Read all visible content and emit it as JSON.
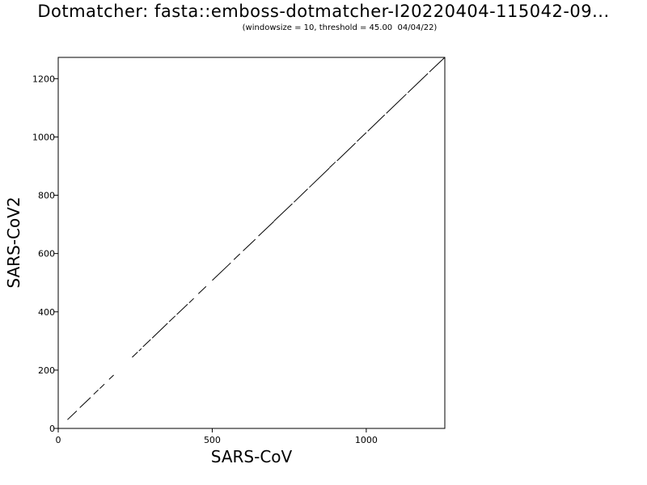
{
  "chart_data": {
    "type": "scatter",
    "title": "Dotmatcher: fasta::emboss-dotmatcher-I20220404-115042-09...",
    "subtitle": "(windowsize = 10, threshold = 45.00  04/04/22)",
    "xlabel": "SARS-CoV",
    "ylabel": "SARS-CoV2",
    "xlim": [
      0,
      1255
    ],
    "ylim": [
      0,
      1273
    ],
    "xticks": [
      0,
      500,
      1000
    ],
    "yticks": [
      0,
      200,
      400,
      600,
      800,
      1000,
      1200
    ],
    "grid": false,
    "series": [
      {
        "segments": [
          [
            30,
            30,
            60,
            60
          ],
          [
            70,
            71,
            105,
            106
          ],
          [
            115,
            117,
            130,
            132
          ],
          [
            135,
            137,
            150,
            152
          ],
          [
            165,
            168,
            180,
            183
          ],
          [
            240,
            244,
            258,
            262
          ],
          [
            262,
            266,
            270,
            274
          ],
          [
            275,
            280,
            300,
            305
          ],
          [
            305,
            310,
            355,
            361
          ],
          [
            360,
            366,
            380,
            386
          ],
          [
            385,
            391,
            420,
            426
          ],
          [
            425,
            431,
            440,
            446
          ],
          [
            455,
            462,
            480,
            487
          ],
          [
            500,
            508,
            560,
            568
          ],
          [
            570,
            579,
            590,
            599
          ],
          [
            600,
            609,
            640,
            649
          ],
          [
            650,
            660,
            700,
            710
          ],
          [
            700,
            711,
            760,
            771
          ],
          [
            765,
            776,
            810,
            822
          ],
          [
            815,
            827,
            880,
            893
          ],
          [
            880,
            894,
            900,
            914
          ],
          [
            905,
            918,
            965,
            979
          ],
          [
            970,
            985,
            1000,
            1015
          ],
          [
            1005,
            1020,
            1060,
            1076
          ],
          [
            1065,
            1081,
            1130,
            1147
          ],
          [
            1135,
            1152,
            1200,
            1218
          ],
          [
            1205,
            1223,
            1255,
            1273
          ]
        ]
      }
    ]
  }
}
